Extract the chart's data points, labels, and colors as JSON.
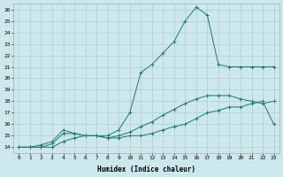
{
  "xlabel": "Humidex (Indice chaleur)",
  "bg_color": "#cce8ec",
  "line_color": "#1e7a6e",
  "grid_color": "#b0cdd0",
  "xlim": [
    -0.5,
    23.5
  ],
  "ylim": [
    13.5,
    26.5
  ],
  "xticks": [
    0,
    1,
    2,
    3,
    4,
    5,
    6,
    7,
    8,
    9,
    10,
    11,
    12,
    13,
    14,
    15,
    16,
    17,
    18,
    19,
    20,
    21,
    22,
    23
  ],
  "yticks": [
    14,
    15,
    16,
    17,
    18,
    19,
    20,
    21,
    22,
    23,
    24,
    25,
    26
  ],
  "line1_x": [
    0,
    1,
    2,
    3,
    4,
    5,
    6,
    7,
    8,
    9,
    10,
    11,
    12,
    13,
    14,
    15,
    16,
    17,
    18,
    19,
    20,
    21,
    22,
    23
  ],
  "line1_y": [
    14,
    14,
    14,
    14,
    14.5,
    14.8,
    15,
    15,
    14.8,
    14.8,
    15,
    15,
    15.2,
    15.5,
    15.8,
    16,
    16.5,
    17,
    17.2,
    17.5,
    17.5,
    17.8,
    18,
    16
  ],
  "line2_x": [
    0,
    1,
    2,
    3,
    4,
    5,
    6,
    7,
    8,
    9,
    10,
    11,
    12,
    13,
    14,
    15,
    16,
    17,
    18,
    19,
    20,
    21,
    22,
    23
  ],
  "line2_y": [
    14,
    14,
    14.2,
    14.5,
    15.5,
    15.2,
    15,
    15,
    15,
    15.5,
    17,
    20.5,
    21.2,
    22.2,
    23.2,
    25,
    26.2,
    25.5,
    21.2,
    21.0,
    21.0,
    21.0,
    21.0,
    21.0
  ],
  "line3_x": [
    0,
    1,
    2,
    3,
    4,
    5,
    6,
    7,
    8,
    9,
    10,
    11,
    12,
    13,
    14,
    15,
    16,
    17,
    18,
    19,
    20,
    21,
    22,
    23
  ],
  "line3_y": [
    14,
    14,
    14,
    14.3,
    15.2,
    15.2,
    15,
    15,
    14.8,
    15,
    15.3,
    15.8,
    16.2,
    16.8,
    17.3,
    17.8,
    18.2,
    18.5,
    18.5,
    18.5,
    18.2,
    18,
    17.8,
    18
  ]
}
